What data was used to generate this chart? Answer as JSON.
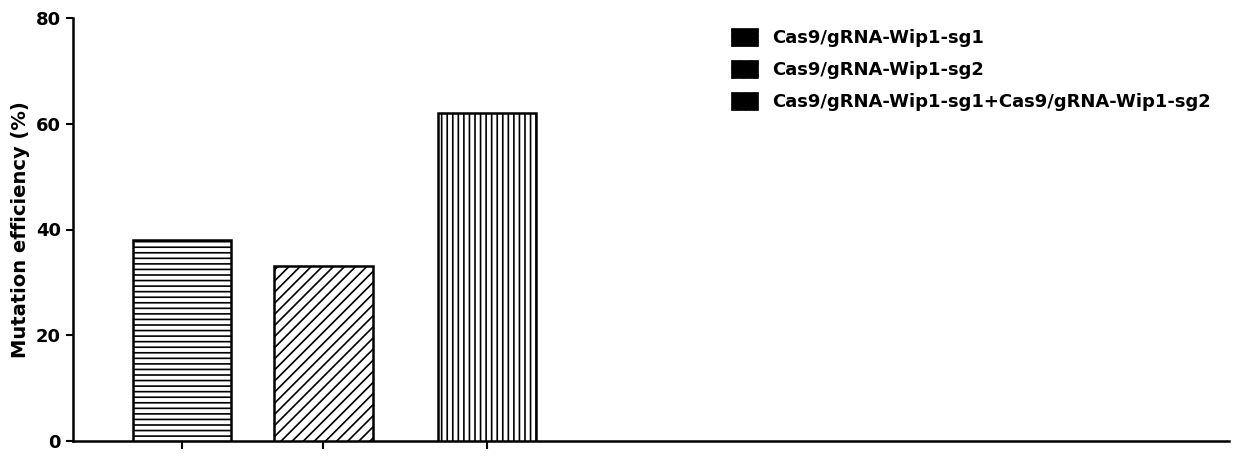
{
  "values": [
    38,
    33,
    62
  ],
  "ylabel": "Mutation efficiency (%)",
  "ylim": [
    0,
    80
  ],
  "yticks": [
    0,
    20,
    40,
    60,
    80
  ],
  "legend_labels": [
    "Cas9/gRNA-Wip1-sg1",
    "Cas9/gRNA-Wip1-sg2",
    "Cas9/gRNA-Wip1-sg1+Cas9/gRNA-Wip1-sg2"
  ],
  "bar_width": 0.45,
  "bar_positions": [
    0.7,
    1.35,
    2.1
  ],
  "background_color": "#ffffff",
  "bar_edge_color": "#000000",
  "hatch_patterns_bar": [
    "---",
    "///",
    "|||"
  ],
  "hatch_patterns_legend": [
    "---",
    "///",
    "||"
  ],
  "legend_fontsize": 13,
  "ylabel_fontsize": 14,
  "tick_fontsize": 13,
  "hatch_linewidth": 1.2
}
